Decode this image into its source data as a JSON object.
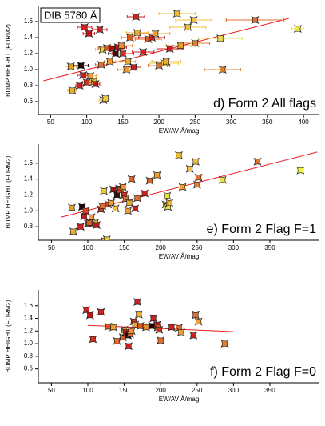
{
  "chart_data": [
    {
      "type": "scatter",
      "label_box": "DIB 5780 Å",
      "annotation": "d) Form 2 All flags",
      "x_label": "EW/AV Å/mag",
      "y_label": "BUMP HEIGHT (FORM2)",
      "xlim": [
        33,
        422
      ],
      "ylim": [
        0.44,
        1.79
      ],
      "xticks": [
        50,
        100,
        150,
        200,
        250,
        300,
        350,
        400
      ],
      "yticks": [
        0.6,
        0.8,
        {
          "value": 1,
          "label": "1.0"
        },
        1.2,
        1.4,
        1.6
      ],
      "x": [
        78,
        80,
        90,
        92,
        95,
        97,
        100,
        103,
        105,
        110,
        112,
        118,
        120,
        122,
        123,
        126,
        128,
        132,
        135,
        140,
        143,
        148,
        150,
        155,
        157,
        160,
        165,
        168,
        170,
        178,
        185,
        190,
        195,
        200,
        207,
        210,
        215,
        225,
        230,
        240,
        248,
        250,
        285,
        288,
        333,
        392
      ],
      "values": [
        1.04,
        0.74,
        0.8,
        1.05,
        0.93,
        1.53,
        0.84,
        1.45,
        0.92,
        0.85,
        0.82,
        1.5,
        1.06,
        1.25,
        0.62,
        0.64,
        1.27,
        1.1,
        1.26,
        1.2,
        1.28,
        1.3,
        1.2,
        1.0,
        1.1,
        1.4,
        1.03,
        1.66,
        1.46,
        1.22,
        1.38,
        1.4,
        1.45,
        1.05,
        1.08,
        1.1,
        1.26,
        1.7,
        1.3,
        1.53,
        1.62,
        1.33,
        1.39,
        1.0,
        1.62,
        1.51
      ],
      "xerr": [
        8,
        6,
        5,
        10,
        8,
        10,
        6,
        8,
        8,
        5,
        6,
        10,
        8,
        10,
        6,
        5,
        12,
        8,
        15,
        10,
        12,
        15,
        15,
        12,
        10,
        12,
        10,
        12,
        15,
        15,
        18,
        18,
        20,
        15,
        20,
        20,
        18,
        25,
        20,
        25,
        25,
        20,
        30,
        25,
        40,
        8
      ],
      "colors": [
        "#e8a020",
        "#f0b030",
        "#d02020",
        "#200000",
        "#c02020",
        "#d02020",
        "#d03020",
        "#c01818",
        "#f0a040",
        "#e8c030",
        "#c01818",
        "#d02020",
        "#e07030",
        "#f0d030",
        "#f0c040",
        "#f0d040",
        "#e05020",
        "#f0a030",
        "#a01010",
        "#301010",
        "#c01818",
        "#f09030",
        "#d03020",
        "#f0a030",
        "#e8b030",
        "#e06020",
        "#c02020",
        "#d02020",
        "#f0b030",
        "#d02020",
        "#e06020",
        "#d02020",
        "#f0a030",
        "#e07030",
        "#f0d040",
        "#f0b030",
        "#d02020",
        "#f0c030",
        "#f0a030",
        "#f0c040",
        "#f0c040",
        "#e08030",
        "#f0e050",
        "#e08030",
        "#e07030",
        "#f0f040"
      ],
      "fit": {
        "x": [
          40,
          380
        ],
        "values": [
          0.86,
          1.64
        ]
      },
      "fit_color": "#ee1c1c"
    },
    {
      "type": "scatter",
      "annotation": "e) Form 2 Flag F=1",
      "x_label": "EW/AV Å/mag",
      "y_label": "BUMP HEIGHT (FORM2)",
      "xlim": [
        32,
        418
      ],
      "ylim": [
        0.63,
        1.84
      ],
      "xticks": [
        50,
        100,
        150,
        200,
        250,
        300,
        350
      ],
      "yticks": [
        0.8,
        {
          "value": 1,
          "label": "1.0"
        },
        1.2,
        1.4,
        1.6
      ],
      "x": [
        78,
        80,
        90,
        92,
        95,
        97,
        100,
        102,
        105,
        110,
        112,
        118,
        120,
        122,
        123,
        126,
        128,
        132,
        135,
        138,
        140,
        143,
        145,
        148,
        150,
        152,
        155,
        157,
        160,
        165,
        168,
        178,
        185,
        195,
        207,
        209,
        210,
        212,
        225,
        230,
        240,
        248,
        250,
        252,
        285,
        333,
        392
      ],
      "values": [
        1.04,
        0.74,
        0.8,
        1.05,
        0.93,
        1.0,
        0.84,
        0.85,
        0.92,
        0.85,
        0.82,
        1.02,
        1.06,
        1.25,
        0.62,
        0.64,
        1.08,
        1.1,
        1.27,
        1.03,
        1.2,
        1.28,
        1.26,
        1.3,
        1.2,
        1.15,
        1.0,
        1.1,
        1.4,
        1.03,
        1.16,
        1.22,
        1.38,
        1.45,
        1.08,
        1.19,
        1.05,
        1.1,
        1.7,
        1.3,
        1.53,
        1.62,
        1.33,
        1.42,
        1.39,
        1.62,
        1.51
      ],
      "colors": [
        "#e8a020",
        "#f0b030",
        "#d02020",
        "#200000",
        "#c02020",
        "#e04020",
        "#d03020",
        "#e06020",
        "#f0a040",
        "#e8c030",
        "#c01818",
        "#d04020",
        "#e07030",
        "#f0d030",
        "#f0c040",
        "#f0d040",
        "#e05020",
        "#f0a030",
        "#a01010",
        "#f0c040",
        "#301010",
        "#c01818",
        "#e05020",
        "#f09030",
        "#d03020",
        "#e07030",
        "#f0a030",
        "#e8b030",
        "#e06020",
        "#c02020",
        "#e07030",
        "#d02020",
        "#e06020",
        "#f0a030",
        "#f0d040",
        "#e8e050",
        "#f0e050",
        "#f0b030",
        "#f0c030",
        "#f0a030",
        "#f0c040",
        "#f0c040",
        "#e08030",
        "#e07030",
        "#f0e050",
        "#e07030",
        "#f0f040"
      ],
      "fit": {
        "x": [
          63,
          415
        ],
        "values": [
          0.92,
          1.74
        ]
      },
      "fit_color": "#ee1c1c"
    },
    {
      "type": "scatter",
      "annotation": "f) Form 2 Flag F=0",
      "x_label": "EW/AV Å/mag",
      "y_label": "BUMP HEIGHT (FORM2)",
      "xlim": [
        32,
        418
      ],
      "ylim": [
        0.38,
        1.85
      ],
      "xticks": [
        50,
        100,
        150,
        200,
        250,
        300,
        350
      ],
      "yticks": [
        0.6,
        0.8,
        {
          "value": 1,
          "label": "1.0"
        },
        1.2,
        1.4,
        1.6
      ],
      "x": [
        98,
        103,
        107,
        118,
        128,
        135,
        140,
        148,
        150,
        152,
        155,
        156,
        158,
        160,
        163,
        165,
        168,
        170,
        172,
        180,
        188,
        190,
        195,
        196,
        198,
        200,
        215,
        225,
        228,
        245,
        248,
        252,
        288
      ],
      "values": [
        1.53,
        1.45,
        1.07,
        1.5,
        1.27,
        1.26,
        1.04,
        1.1,
        1.22,
        1.18,
        1.13,
        0.96,
        1.15,
        1.2,
        1.35,
        1.3,
        1.66,
        1.46,
        1.28,
        1.26,
        1.28,
        1.4,
        1.3,
        1.26,
        1.22,
        1.05,
        1.26,
        1.25,
        1.18,
        1.13,
        1.45,
        1.35,
        1.0
      ],
      "colors": [
        "#d02020",
        "#c01818",
        "#d03020",
        "#d02020",
        "#e05020",
        "#f0a030",
        "#e07030",
        "#e06020",
        "#f0a030",
        "#c02020",
        "#200000",
        "#d02020",
        "#e07030",
        "#f09030",
        "#d03020",
        "#f0a030",
        "#d02020",
        "#f0b030",
        "#e05020",
        "#f09030",
        "#200000",
        "#d02020",
        "#c01818",
        "#e05020",
        "#d03020",
        "#e07030",
        "#d02020",
        "#e07030",
        "#f0a030",
        "#d02020",
        "#e07030",
        "#f0a030",
        "#e08030"
      ],
      "fit": {
        "x": [
          100,
          300
        ],
        "values": [
          1.29,
          1.19
        ]
      },
      "fit_color": "#ee1c1c"
    }
  ]
}
